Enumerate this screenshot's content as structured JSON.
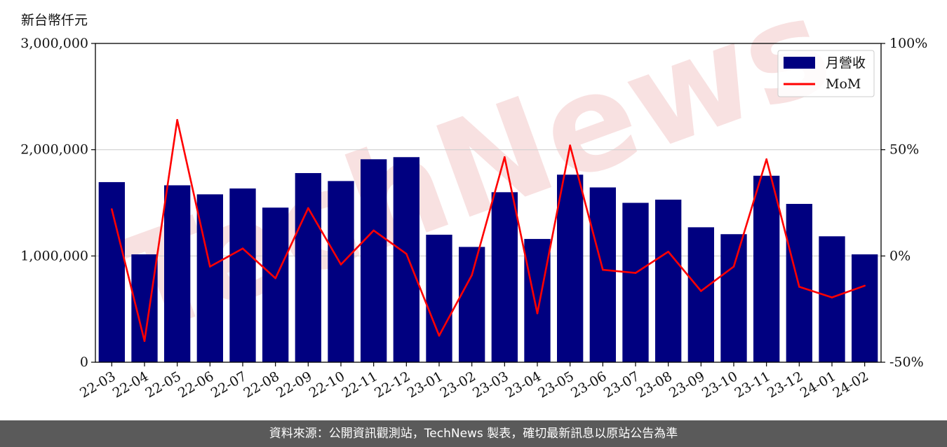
{
  "unit_label": "新台幣仟元",
  "footer_text": "資料來源：公開資訊觀測站，TechNews 製表，確切最新訊息以原站公告為準",
  "watermark_text": "TechNews",
  "colors": {
    "bar": "#000080",
    "line": "#ff0000",
    "grid": "#d0d0d0",
    "watermark": "#f3c9c9"
  },
  "chart_data": {
    "type": "bar",
    "categories": [
      "22-03",
      "22-04",
      "22-05",
      "22-06",
      "22-07",
      "22-08",
      "22-09",
      "22-10",
      "22-11",
      "22-12",
      "23-01",
      "23-02",
      "23-03",
      "23-04",
      "23-05",
      "23-06",
      "23-07",
      "23-08",
      "23-09",
      "23-10",
      "23-11",
      "23-12",
      "24-01",
      "24-02"
    ],
    "series": [
      {
        "name": "月營收",
        "type": "bar",
        "axis": "left",
        "values": [
          1695000,
          1015000,
          1665000,
          1580000,
          1635000,
          1455000,
          1780000,
          1705000,
          1910000,
          1930000,
          1200000,
          1085000,
          1600000,
          1160000,
          1765000,
          1645000,
          1500000,
          1530000,
          1270000,
          1205000,
          1755000,
          1490000,
          1185000,
          1015000
        ]
      },
      {
        "name": "MoM",
        "type": "line",
        "axis": "right",
        "values": [
          22,
          -40,
          64,
          -5,
          3.5,
          -10.5,
          22.5,
          -4,
          12,
          1,
          -37.5,
          -9,
          46.5,
          -27,
          52,
          -6.5,
          -8,
          2,
          -16.5,
          -5,
          45.5,
          -14.5,
          -19.5,
          -14
        ]
      }
    ],
    "y_left": {
      "lim": [
        0,
        3000000
      ],
      "ticks": [
        0,
        1000000,
        2000000,
        3000000
      ],
      "tick_labels": [
        "0",
        "1,000,000",
        "2,000,000",
        "3,000,000"
      ]
    },
    "y_right": {
      "lim": [
        -50,
        100
      ],
      "ticks": [
        -50,
        0,
        50,
        100
      ],
      "tick_labels": [
        "-50%",
        "0%",
        "50%",
        "100%"
      ]
    },
    "grid": "horizontal",
    "legend_position": "top-right",
    "legend": [
      "月營收",
      "MoM"
    ]
  }
}
